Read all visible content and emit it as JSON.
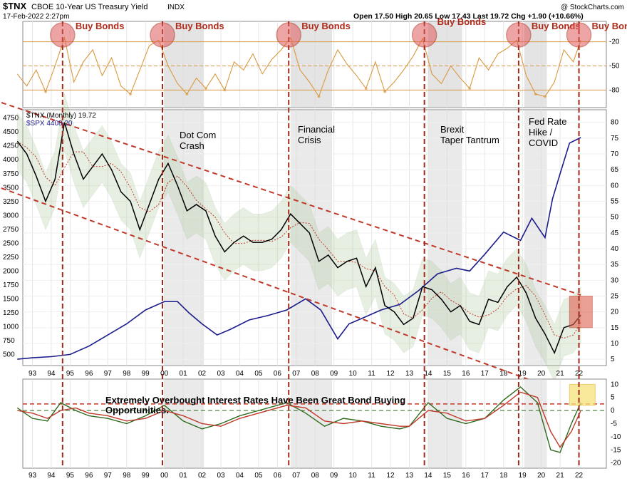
{
  "header": {
    "symbol": "$TNX",
    "description": "CBOE 10-Year US Treasury Yield",
    "exchange": "INDX",
    "date": "17-Feb-2022 2:27pm",
    "quote": "Open 17.50  High 20.65  Low 17.43  Last 19.72  Chg +1.90 (+10.66%)",
    "watermark": "@ StockCharts.com"
  },
  "chart_data": [
    {
      "type": "line",
      "panel": "rsi",
      "y_ticks": [
        "-20",
        "-50",
        "-80"
      ],
      "annotations": [
        "Buy Bonds",
        "Buy Bonds",
        "Buy Bonds",
        "Buy Bonds",
        "Buy Bonds",
        "Buy Bonds"
      ],
      "signal_years": [
        1994.6,
        1999.9,
        2006.6,
        2013.8,
        2018.8,
        2022.0
      ],
      "series": [
        {
          "color": "#d9993f",
          "x": [
            1992.2,
            1992.7,
            1993.2,
            1993.7,
            1994.2,
            1994.7,
            1995.2,
            1995.7,
            1996.2,
            1996.7,
            1997.2,
            1997.7,
            1998.2,
            1998.7,
            1999.2,
            1999.7,
            2000.2,
            2000.7,
            2001.2,
            2001.7,
            2002.2,
            2002.7,
            2003.2,
            2003.7,
            2004.2,
            2004.7,
            2005.2,
            2005.7,
            2006.2,
            2006.7,
            2007.2,
            2007.7,
            2008.2,
            2008.7,
            2009.2,
            2009.7,
            2010.2,
            2010.7,
            2011.2,
            2011.7,
            2012.2,
            2012.7,
            2013.2,
            2013.7,
            2014.2,
            2014.7,
            2015.2,
            2015.7,
            2016.2,
            2016.7,
            2017.2,
            2017.7,
            2018.2,
            2018.7,
            2019.2,
            2019.7,
            2020.2,
            2020.7,
            2021.2,
            2021.7,
            2022.1
          ],
          "values": [
            -60,
            -75,
            -55,
            -82,
            -50,
            -15,
            -70,
            -45,
            -30,
            -62,
            -40,
            -75,
            -85,
            -55,
            -25,
            -18,
            -50,
            -72,
            -85,
            -65,
            -78,
            -60,
            -80,
            -45,
            -55,
            -35,
            -60,
            -42,
            -30,
            -15,
            -55,
            -70,
            -88,
            -55,
            -30,
            -48,
            -62,
            -78,
            -45,
            -82,
            -70,
            -55,
            -38,
            -16,
            -60,
            -72,
            -50,
            -65,
            -78,
            -40,
            -55,
            -35,
            -28,
            -18,
            -62,
            -85,
            -88,
            -70,
            -30,
            -45,
            -18
          ]
        }
      ]
    },
    {
      "type": "line",
      "panel": "price",
      "legend": [
        "$TNX (Monthly) 19.72",
        "$SPX 4408.20"
      ],
      "x_ticks": [
        "93",
        "94",
        "95",
        "96",
        "97",
        "98",
        "99",
        "00",
        "01",
        "02",
        "03",
        "04",
        "05",
        "06",
        "07",
        "08",
        "09",
        "10",
        "11",
        "12",
        "13",
        "14",
        "15",
        "16",
        "17",
        "18",
        "19",
        "20",
        "21",
        "22"
      ],
      "y_left_ticks": [
        "4750",
        "4500",
        "4250",
        "4000",
        "3750",
        "3500",
        "3250",
        "3000",
        "2750",
        "2500",
        "2250",
        "2000",
        "1750",
        "1500",
        "1250",
        "1000",
        "750",
        "500"
      ],
      "y_right_ticks": [
        "80",
        "75",
        "70",
        "65",
        "60",
        "55",
        "50",
        "45",
        "40",
        "35",
        "30",
        "25",
        "20",
        "15",
        "10",
        "5"
      ],
      "ylim_left": [
        300,
        4900
      ],
      "ylim_right": [
        3,
        84
      ],
      "annotations": [
        "Dot Com\nCrash",
        "Financial\nCrisis",
        "Brexit\nTaper Tantrum",
        "Fed Rate\nHike /\nCOVID"
      ],
      "series": [
        {
          "name": "$TNX (Monthly) 19.72",
          "color": "#000000",
          "axis": "right",
          "x": [
            1992.2,
            1992.7,
            1993.2,
            1993.7,
            1994.2,
            1994.7,
            1995.2,
            1995.7,
            1996.2,
            1996.7,
            1997.2,
            1997.7,
            1998.2,
            1998.7,
            1999.2,
            1999.7,
            2000.2,
            2000.7,
            2001.2,
            2001.7,
            2002.2,
            2002.7,
            2003.2,
            2003.7,
            2004.2,
            2004.7,
            2005.2,
            2005.7,
            2006.2,
            2006.7,
            2007.2,
            2007.7,
            2008.2,
            2008.7,
            2009.2,
            2009.7,
            2010.2,
            2010.7,
            2011.2,
            2011.7,
            2012.2,
            2012.7,
            2013.2,
            2013.7,
            2014.2,
            2014.7,
            2015.2,
            2015.7,
            2016.2,
            2016.7,
            2017.2,
            2017.7,
            2018.2,
            2018.7,
            2019.2,
            2019.7,
            2020.2,
            2020.7,
            2021.2,
            2021.7,
            2022.1
          ],
          "values": [
            74,
            70,
            63,
            55,
            62,
            80,
            70,
            62,
            66,
            70,
            65,
            58,
            55,
            46,
            54,
            62,
            67,
            60,
            52,
            54,
            52,
            44,
            39,
            42,
            44,
            42,
            42,
            43,
            46,
            51,
            48,
            45,
            36,
            38,
            34,
            36,
            37,
            28,
            34,
            22,
            20,
            16,
            18,
            28,
            27,
            24,
            20,
            22,
            17,
            16,
            24,
            23,
            28,
            31,
            26,
            18,
            13,
            7,
            15,
            16,
            19
          ]
        },
        {
          "name": "$SPX 4408.20",
          "color": "#1c1c8c",
          "axis": "left",
          "x": [
            1992.2,
            1993.0,
            1994.0,
            1995.0,
            1996.0,
            1997.0,
            1998.0,
            1999.0,
            2000.0,
            2000.7,
            2001.3,
            2002.0,
            2002.8,
            2003.5,
            2004.5,
            2005.5,
            2006.5,
            2007.5,
            2008.3,
            2009.2,
            2009.8,
            2010.5,
            2011.5,
            2012.5,
            2013.5,
            2014.5,
            2015.5,
            2016.2,
            2017.0,
            2018.0,
            2018.9,
            2019.5,
            2020.2,
            2020.6,
            2021.0,
            2021.5,
            2022.1
          ],
          "values": [
            415,
            440,
            460,
            500,
            650,
            850,
            1050,
            1300,
            1450,
            1450,
            1250,
            1050,
            850,
            950,
            1120,
            1200,
            1300,
            1500,
            1300,
            780,
            1050,
            1150,
            1300,
            1400,
            1650,
            1950,
            2050,
            2000,
            2300,
            2700,
            2550,
            2950,
            2600,
            3300,
            3750,
            4300,
            4400
          ]
        }
      ]
    },
    {
      "type": "line",
      "panel": "macd",
      "y_right_ticks": [
        "10",
        "5",
        "0",
        "-5",
        "-10",
        "-15",
        "-20"
      ],
      "ylim": [
        -22,
        12
      ],
      "annotations": [
        "Extremely Overbought Interest Rates Have Been Great Bond Buying",
        "Opportunities."
      ],
      "series": [
        {
          "color": "#2e6b1e",
          "x": [
            1992.2,
            1993.0,
            1993.8,
            1994.5,
            1995.3,
            1996.0,
            1997.0,
            1998.0,
            1999.0,
            2000.0,
            2001.0,
            2002.0,
            2003.0,
            2004.0,
            2005.0,
            2006.5,
            2007.5,
            2008.5,
            2009.5,
            2010.5,
            2011.5,
            2012.5,
            2013.0,
            2014.0,
            2015.0,
            2016.0,
            2017.0,
            2018.0,
            2018.9,
            2019.8,
            2020.5,
            2021.0,
            2021.6,
            2022.1
          ],
          "values": [
            1,
            -3,
            -4,
            3,
            0,
            -2,
            -3,
            -5,
            -2,
            2,
            -4,
            -7,
            -5,
            -2,
            0,
            3,
            -1,
            -6,
            -3,
            -4,
            -6,
            -7,
            -6,
            3,
            -3,
            -5,
            -3,
            4,
            9,
            3,
            -15,
            -16,
            -5,
            3
          ]
        },
        {
          "color": "#c0392b",
          "x": [
            1992.2,
            1993.0,
            1993.8,
            1994.5,
            1995.3,
            1996.0,
            1997.0,
            1998.0,
            1999.0,
            2000.0,
            2001.0,
            2002.0,
            2003.0,
            2004.0,
            2005.0,
            2006.5,
            2007.5,
            2008.5,
            2009.5,
            2010.5,
            2011.5,
            2012.5,
            2013.0,
            2014.0,
            2015.0,
            2016.0,
            2017.0,
            2018.0,
            2018.9,
            2019.8,
            2020.5,
            2021.0,
            2021.6,
            2022.1
          ],
          "values": [
            0,
            -1,
            -3,
            0,
            1,
            -1,
            -2,
            -4,
            -3,
            0,
            -2,
            -5,
            -6,
            -3,
            -1,
            2,
            1,
            -4,
            -5,
            -4,
            -5,
            -6,
            -6,
            0,
            -1,
            -4,
            -3,
            2,
            7,
            5,
            -8,
            -14,
            -8,
            0
          ]
        }
      ]
    }
  ]
}
